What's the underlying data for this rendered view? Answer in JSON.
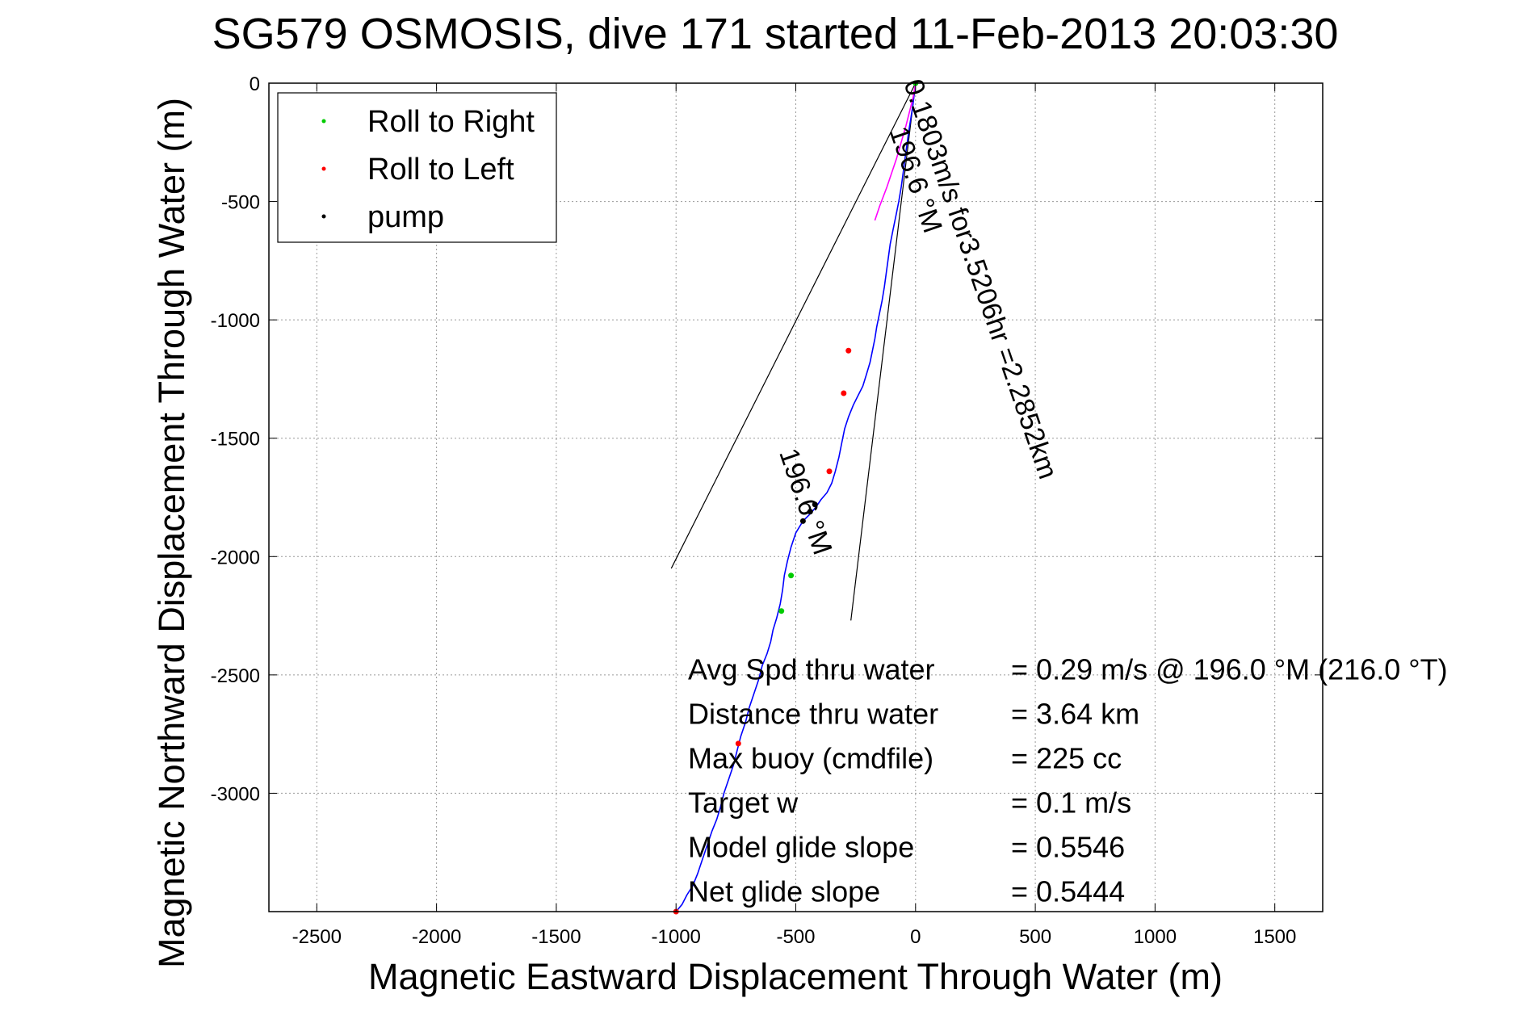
{
  "chart_data": {
    "type": "line",
    "title": "SG579 OSMOSIS, dive 171 started 11-Feb-2013 20:03:30",
    "xlabel": "Magnetic Eastward Displacement Through Water (m)",
    "ylabel": "Magnetic Northward Displacement Through Water (m)",
    "xlim": [
      -2700,
      1700
    ],
    "ylim": [
      -3500,
      0
    ],
    "xticks": [
      -2500,
      -2000,
      -1500,
      -1000,
      -500,
      0,
      500,
      1000,
      1500
    ],
    "yticks": [
      0,
      -500,
      -1000,
      -1500,
      -2000,
      -2500,
      -3000
    ],
    "grid": true,
    "legend_position": "top-left",
    "legend": [
      {
        "label": "Roll to Right",
        "color": "#00cc00"
      },
      {
        "label": "Roll to Left",
        "color": "#ff0000"
      },
      {
        "label": "pump",
        "color": "#000000"
      }
    ],
    "track_color": "#0000ff",
    "track": {
      "x": [
        0,
        -6,
        -12,
        -20,
        -28,
        -36,
        -44,
        -52,
        -60,
        -70,
        -82,
        -94,
        -106,
        -114,
        -122,
        -130,
        -140,
        -152,
        -162,
        -170,
        -180,
        -190,
        -205,
        -220,
        -240,
        -260,
        -280,
        -296,
        -308,
        -320,
        -335,
        -350,
        -370,
        -395,
        -415,
        -440,
        -470,
        -500,
        -520,
        -535,
        -548,
        -555,
        -565,
        -580,
        -595,
        -605,
        -620,
        -640,
        -655,
        -675,
        -695,
        -710,
        -730,
        -745,
        -760,
        -780,
        -800,
        -815,
        -830,
        -850,
        -870,
        -890,
        -910,
        -930,
        -955,
        -975,
        -1000
      ],
      "y": [
        0,
        -50,
        -100,
        -150,
        -200,
        -260,
        -320,
        -380,
        -440,
        -500,
        -560,
        -620,
        -680,
        -740,
        -800,
        -860,
        -920,
        -980,
        -1030,
        -1080,
        -1130,
        -1180,
        -1230,
        -1280,
        -1320,
        -1360,
        -1410,
        -1460,
        -1520,
        -1580,
        -1640,
        -1690,
        -1730,
        -1760,
        -1790,
        -1820,
        -1850,
        -1900,
        -1960,
        -2020,
        -2080,
        -2140,
        -2200,
        -2260,
        -2310,
        -2360,
        -2410,
        -2460,
        -2520,
        -2580,
        -2640,
        -2700,
        -2760,
        -2820,
        -2880,
        -2940,
        -3000,
        -3060,
        -3110,
        -3160,
        -3220,
        -3280,
        -3340,
        -3390,
        -3430,
        -3470,
        -3500
      ]
    },
    "roll_right_points": {
      "x": [
        0,
        -560,
        -520
      ],
      "y": [
        0,
        -2230,
        -2080
      ]
    },
    "roll_left_points": {
      "x": [
        -300,
        -280,
        -360,
        -740,
        -1000
      ],
      "y": [
        -1310,
        -1130,
        -1640,
        -2790,
        -3500
      ]
    },
    "pump_points": {
      "x": [
        -440,
        -420,
        -470
      ],
      "y": [
        -1810,
        -1780,
        -1850
      ]
    },
    "depth_average_current": {
      "x": [
        0,
        -10,
        -40,
        -80,
        -120,
        -150,
        -170
      ],
      "y": [
        0,
        -60,
        -180,
        -320,
        -440,
        -520,
        -580
      ],
      "color": "#ff00ff"
    },
    "lines": [
      {
        "x": [
          0,
          -1020
        ],
        "y": [
          0,
          -2050
        ]
      },
      {
        "x": [
          0,
          -270
        ],
        "y": [
          0,
          -2270
        ]
      }
    ],
    "annotations": [
      {
        "text": "0.1803m/s for3.5206hr =2.2852km",
        "x": -50,
        "y": 0,
        "rotation": 71
      },
      {
        "text": "196.6 °M",
        "x": -110,
        "y": -200,
        "rotation": 71
      },
      {
        "text": "196.6 °M",
        "x": -570,
        "y": -1560,
        "rotation": 71
      }
    ],
    "stats": [
      {
        "label": "Avg Spd thru water",
        "value": "=  0.29 m/s @ 196.0 °M (216.0 °T)"
      },
      {
        "label": "Distance thru water",
        "value": "=  3.64 km"
      },
      {
        "label": "Max buoy (cmdfile)",
        "value": "= 225 cc"
      },
      {
        "label": "Target w",
        "value": "= 0.1 m/s"
      },
      {
        "label": "Model glide slope",
        "value": "= 0.5546"
      },
      {
        "label": "Net glide slope",
        "value": "= 0.5444"
      }
    ],
    "stats_anchor": {
      "x": -950,
      "y": -2520
    }
  }
}
